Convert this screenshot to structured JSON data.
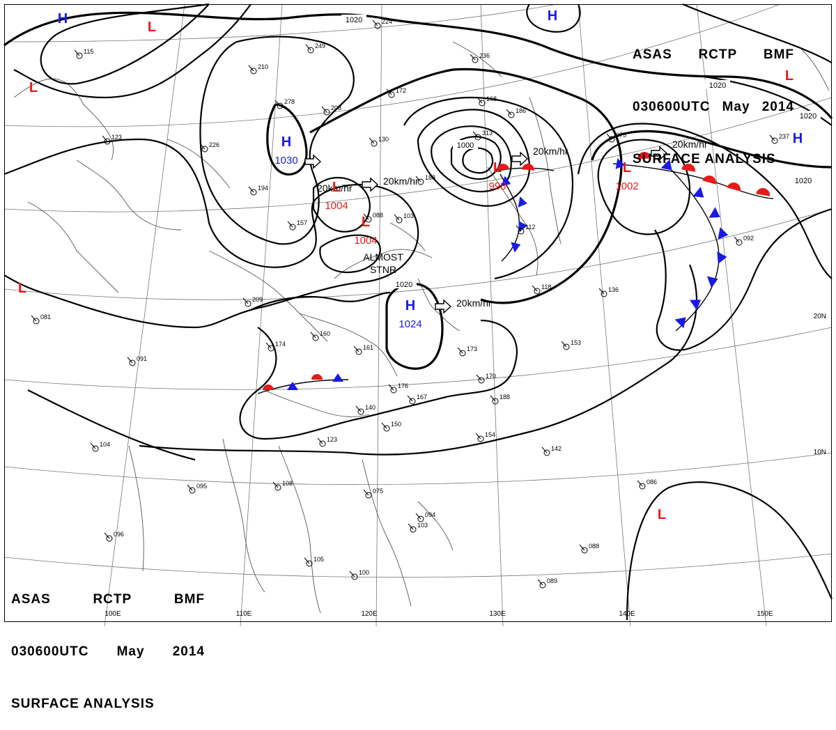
{
  "header": {
    "line1": [
      "ASAS",
      "RCTP",
      "BMF"
    ],
    "line2": [
      "030600UTC",
      "May",
      "2014"
    ],
    "line3": "SURFACE ANALYSIS"
  },
  "colors": {
    "high": "#1a1ae6",
    "low": "#e61a1a",
    "isobar": "#000000",
    "graticule": "#777777",
    "coast": "#555555"
  },
  "pressure_centers": [
    {
      "type": "H",
      "label": "H",
      "value": "1030"
    },
    {
      "type": "H",
      "label": "H",
      "value": "1024"
    },
    {
      "type": "H",
      "label": "H",
      "value": ""
    },
    {
      "type": "H",
      "label": "H",
      "value": ""
    },
    {
      "type": "H",
      "label": "H",
      "value": ""
    },
    {
      "type": "L",
      "label": "L",
      "value": "1004"
    },
    {
      "type": "L",
      "label": "L",
      "value": "1004"
    },
    {
      "type": "L",
      "label": "L",
      "value": "998"
    },
    {
      "type": "L",
      "label": "L",
      "value": "1002"
    },
    {
      "type": "L",
      "label": "L",
      "value": ""
    },
    {
      "type": "L",
      "label": "L",
      "value": ""
    },
    {
      "type": "L",
      "label": "L",
      "value": ""
    },
    {
      "type": "L",
      "label": "L",
      "value": ""
    },
    {
      "type": "L",
      "label": "L",
      "value": ""
    }
  ],
  "isobar_labels": [
    "1020",
    "1020",
    "1020",
    "1020",
    "1000",
    "1020"
  ],
  "motion_labels": [
    "20km/hr",
    "20km/hr",
    "20km/hr",
    "20km/hr",
    "20km/hr"
  ],
  "annotations": {
    "almost": "ALMOST",
    "stnr": "STNR"
  },
  "longitude_labels": [
    "100E",
    "110E",
    "120E",
    "130E",
    "140E",
    "150E"
  ],
  "latitude_labels": [
    "20N",
    "10N"
  ],
  "station_values": [
    "224",
    "249",
    "210",
    "278",
    "226",
    "194",
    "157",
    "208",
    "172",
    "130",
    "188",
    "168",
    "236",
    "186",
    "313",
    "115",
    "123",
    "174",
    "209",
    "160",
    "161",
    "173",
    "170",
    "176",
    "167",
    "188",
    "140",
    "150",
    "154",
    "142",
    "123",
    "104",
    "091",
    "081",
    "095",
    "096",
    "108",
    "105",
    "100",
    "094",
    "103",
    "086",
    "089",
    "088",
    "075",
    "092",
    "136",
    "153",
    "118",
    "112",
    "088",
    "103",
    "237",
    "075"
  ]
}
